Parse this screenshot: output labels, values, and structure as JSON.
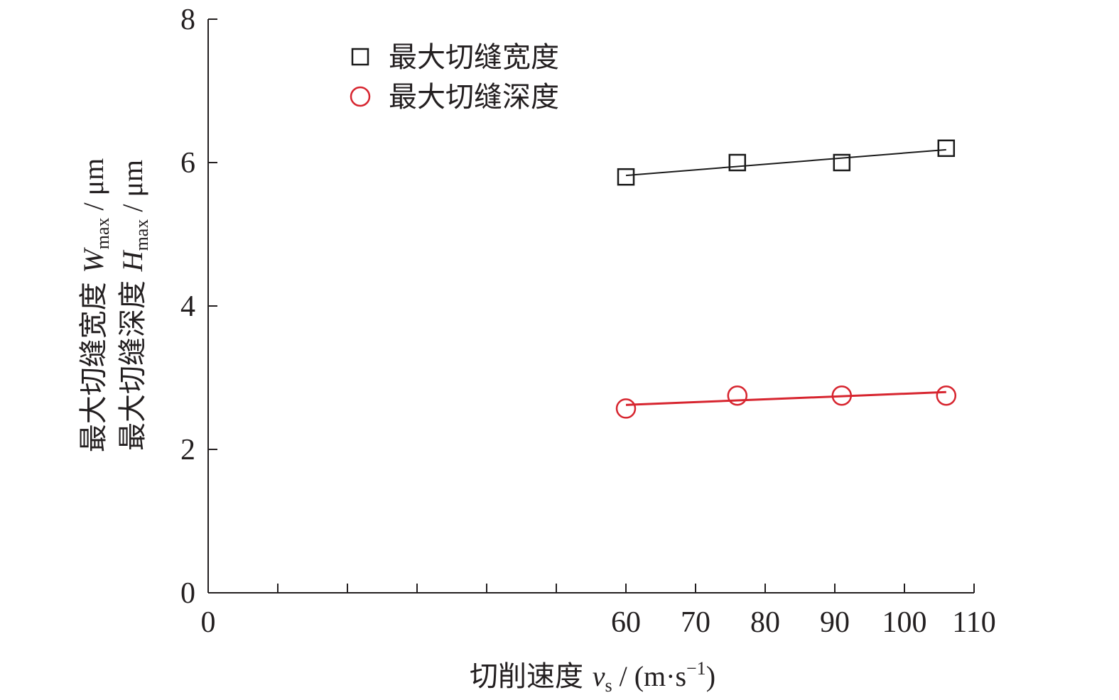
{
  "chart_data": {
    "type": "scatter",
    "xlabel": {
      "main": "切削速度 ",
      "var": "v",
      "sub": "s",
      "unit_open": " / (m·s",
      "sup": "−1",
      "unit_close": ")"
    },
    "ylabel_lines": [
      {
        "main": "最大切缝宽度 ",
        "var": "W",
        "sub": "max",
        "unit": " / μm"
      },
      {
        "main": "最大切缝深度 ",
        "var": "H",
        "sub": "max",
        "unit": " / μm"
      }
    ],
    "xlim": [
      0,
      110
    ],
    "ylim": [
      0,
      8
    ],
    "xticks": [
      0,
      60,
      70,
      80,
      90,
      100,
      110
    ],
    "xticks_minor": [
      10,
      20,
      30,
      40,
      50
    ],
    "yticks": [
      0,
      2,
      4,
      6,
      8
    ],
    "legend_position": "top-left",
    "series": [
      {
        "name": "最大切缝宽度",
        "marker": "square",
        "color": "#1a1a1a",
        "x": [
          60,
          76,
          91,
          106
        ],
        "y": [
          5.8,
          6.0,
          6.0,
          6.2
        ],
        "fit": {
          "x": [
            60,
            106
          ],
          "y": [
            5.82,
            6.18
          ]
        }
      },
      {
        "name": "最大切缝深度",
        "marker": "circle",
        "color": "#d7252f",
        "x": [
          60,
          76,
          91,
          106
        ],
        "y": [
          2.57,
          2.75,
          2.75,
          2.75
        ],
        "fit": {
          "x": [
            60,
            106
          ],
          "y": [
            2.62,
            2.8
          ]
        }
      }
    ]
  }
}
